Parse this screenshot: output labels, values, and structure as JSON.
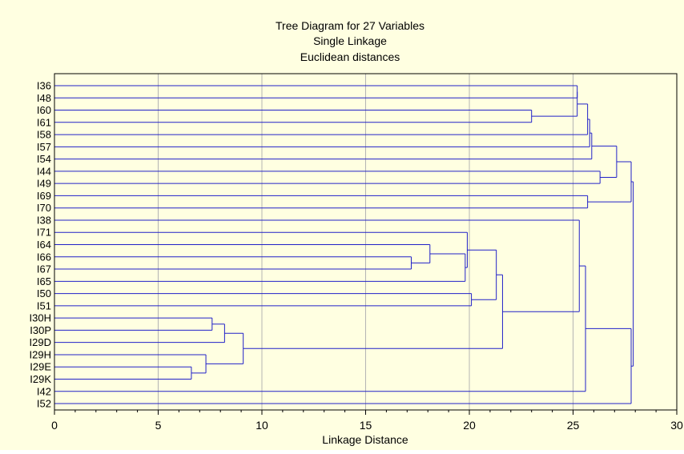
{
  "chart_data": {
    "type": "dendrogram",
    "title_lines": [
      "Tree Diagram for 27  Variables",
      "Single Linkage",
      "Euclidean distances"
    ],
    "xlabel": "Linkage Distance",
    "xlim": [
      0,
      30
    ],
    "xticks": [
      "0",
      "5",
      "10",
      "15",
      "20",
      "25",
      "30"
    ],
    "grid": true,
    "orientation": "horizontal",
    "leaves": [
      "I36",
      "I48",
      "I60",
      "I61",
      "I58",
      "I57",
      "I54",
      "I44",
      "I49",
      "I69",
      "I70",
      "I38",
      "I71",
      "I64",
      "I66",
      "I67",
      "I65",
      "I50",
      "I51",
      "I30H",
      "I30P",
      "I29D",
      "I29H",
      "I29E",
      "I29K",
      "I42",
      "I52"
    ],
    "merges": [
      {
        "id": "m1",
        "a": "I29E",
        "b": "I29K",
        "height": 6.6
      },
      {
        "id": "m2",
        "a": "I30H",
        "b": "I30P",
        "height": 7.6
      },
      {
        "id": "m3",
        "a": "I29H",
        "b": "m1",
        "height": 7.3
      },
      {
        "id": "m4",
        "a": "m2",
        "b": "I29D",
        "height": 8.2
      },
      {
        "id": "m5",
        "a": "m4",
        "b": "m3",
        "height": 9.1
      },
      {
        "id": "m6",
        "a": "I66",
        "b": "I67",
        "height": 17.2
      },
      {
        "id": "m7",
        "a": "I64",
        "b": "m6",
        "height": 18.1
      },
      {
        "id": "m8",
        "a": "m7",
        "b": "I65",
        "height": 19.8
      },
      {
        "id": "m9",
        "a": "I71",
        "b": "m8",
        "height": 19.9
      },
      {
        "id": "m10",
        "a": "I50",
        "b": "I51",
        "height": 20.1
      },
      {
        "id": "m11",
        "a": "m9",
        "b": "m10",
        "height": 21.3
      },
      {
        "id": "m12",
        "a": "m11",
        "b": "m5",
        "height": 21.6
      },
      {
        "id": "m13",
        "a": "I60",
        "b": "I61",
        "height": 23.0
      },
      {
        "id": "m14",
        "a": "I36",
        "b": "I48",
        "height": 25.2
      },
      {
        "id": "m15",
        "a": "m14",
        "b": "m13",
        "height": 25.2
      },
      {
        "id": "m16",
        "a": "I38",
        "b": "m12",
        "height": 25.3
      },
      {
        "id": "m17",
        "a": "m16",
        "b": "I42",
        "height": 25.6
      },
      {
        "id": "m18",
        "a": "m15",
        "b": "I58",
        "height": 25.7
      },
      {
        "id": "m19",
        "a": "m18",
        "b": "I57",
        "height": 25.8
      },
      {
        "id": "m20",
        "a": "I69",
        "b": "I70",
        "height": 25.7
      },
      {
        "id": "m21",
        "a": "m19",
        "b": "I54",
        "height": 25.9
      },
      {
        "id": "m22",
        "a": "I44",
        "b": "I49",
        "height": 26.3
      },
      {
        "id": "m23",
        "a": "m21",
        "b": "m22",
        "height": 27.1
      },
      {
        "id": "m24",
        "a": "m17",
        "b": "I52",
        "height": 27.8
      },
      {
        "id": "m25",
        "a": "m23",
        "b": "m20",
        "height": 27.8
      },
      {
        "id": "m26",
        "a": "m25",
        "b": "m24",
        "height": 27.9
      }
    ],
    "line_color": "#2020c8",
    "grid_color": "#b4b4b4",
    "background_color": "#ffffe1"
  }
}
